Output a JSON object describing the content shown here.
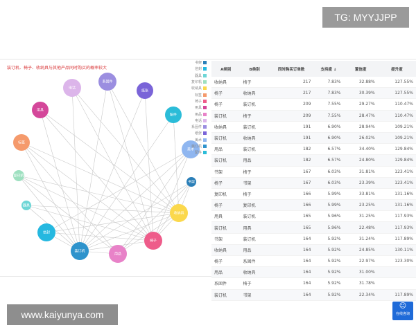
{
  "watermarks": {
    "top": "TG: MYYJJPP",
    "bottom": "www.kaiyunya.com"
  },
  "graph": {
    "title": "装订机、椅子、收纳具与其他产品同时购买的概率较大",
    "legend": [
      {
        "name": "书架",
        "color": "#2b7fb8"
      },
      {
        "name": "信封",
        "color": "#25b8e0"
      },
      {
        "name": "器具",
        "color": "#6ed6d6"
      },
      {
        "name": "复印机",
        "color": "#9ee0c0"
      },
      {
        "name": "收纳具",
        "color": "#fbd84c"
      },
      {
        "name": "标签",
        "color": "#f59a6c"
      },
      {
        "name": "椅子",
        "color": "#ee5c8a"
      },
      {
        "name": "用具",
        "color": "#d4479a"
      },
      {
        "name": "用品",
        "color": "#e882c8"
      },
      {
        "name": "电话",
        "color": "#dcb5ea"
      },
      {
        "name": "系固件",
        "color": "#9b8ee0"
      },
      {
        "name": "纸张",
        "color": "#7a64d8"
      },
      {
        "name": "美术",
        "color": "#8fb6f0"
      },
      {
        "name": "装订机",
        "color": "#2e93cc"
      },
      {
        "name": "配件",
        "color": "#2bbcd8"
      }
    ],
    "links": [
      [
        "装订机",
        "椅子"
      ],
      [
        "装订机",
        "收纳具"
      ],
      [
        "装订机",
        "用品"
      ],
      [
        "装订机",
        "书架"
      ],
      [
        "装订机",
        "用具"
      ],
      [
        "装订机",
        "系固件"
      ],
      [
        "装订机",
        "电话"
      ],
      [
        "装订机",
        "纸张"
      ],
      [
        "装订机",
        "配件"
      ],
      [
        "装订机",
        "美术"
      ],
      [
        "装订机",
        "标签"
      ],
      [
        "装订机",
        "复印机"
      ],
      [
        "装订机",
        "器具"
      ],
      [
        "装订机",
        "信封"
      ],
      [
        "椅子",
        "收纳具"
      ],
      [
        "椅子",
        "书架"
      ],
      [
        "椅子",
        "复印机"
      ],
      [
        "椅子",
        "系固件"
      ],
      [
        "椅子",
        "电话"
      ],
      [
        "椅子",
        "用具"
      ],
      [
        "椅子",
        "标签"
      ],
      [
        "椅子",
        "器具"
      ],
      [
        "椅子",
        "信封"
      ],
      [
        "椅子",
        "纸张"
      ],
      [
        "椅子",
        "美术"
      ],
      [
        "收纳具",
        "用品"
      ],
      [
        "收纳具",
        "电话"
      ],
      [
        "收纳具",
        "用具"
      ],
      [
        "收纳具",
        "标签"
      ],
      [
        "收纳具",
        "复印机"
      ],
      [
        "收纳具",
        "信封"
      ],
      [
        "收纳具",
        "书架"
      ],
      [
        "收纳具",
        "系固件"
      ],
      [
        "收纳具",
        "配件"
      ],
      [
        "收纳具",
        "器具"
      ],
      [
        "用品",
        "书架"
      ],
      [
        "用品",
        "标签"
      ],
      [
        "用品",
        "复印机"
      ],
      [
        "用品",
        "美术"
      ],
      [
        "信封",
        "美术"
      ]
    ]
  },
  "table": {
    "headers": [
      "A类别",
      "B类别",
      "同时购买订单数",
      "支持度 ↓",
      "置信度",
      "提升度"
    ],
    "rows": [
      [
        "收纳具",
        "椅子",
        "217",
        "7.83%",
        "32.88%",
        "127.55%"
      ],
      [
        "椅子",
        "收纳具",
        "217",
        "7.83%",
        "30.39%",
        "127.55%"
      ],
      [
        "椅子",
        "装订机",
        "209",
        "7.55%",
        "29.27%",
        "110.47%"
      ],
      [
        "装订机",
        "椅子",
        "209",
        "7.55%",
        "28.47%",
        "110.47%"
      ],
      [
        "收纳具",
        "装订机",
        "191",
        "6.90%",
        "28.94%",
        "109.21%"
      ],
      [
        "装订机",
        "收纳具",
        "191",
        "6.90%",
        "26.02%",
        "109.21%"
      ],
      [
        "用品",
        "装订机",
        "182",
        "6.57%",
        "34.40%",
        "129.84%"
      ],
      [
        "装订机",
        "用品",
        "182",
        "6.57%",
        "24.80%",
        "129.84%"
      ],
      [
        "书架",
        "椅子",
        "167",
        "6.03%",
        "31.81%",
        "123.41%"
      ],
      [
        "椅子",
        "书架",
        "167",
        "6.03%",
        "23.39%",
        "123.41%"
      ],
      [
        "复印机",
        "椅子",
        "166",
        "5.99%",
        "33.81%",
        "131.16%"
      ],
      [
        "椅子",
        "复印机",
        "166",
        "5.99%",
        "23.25%",
        "131.16%"
      ],
      [
        "用具",
        "装订机",
        "165",
        "5.96%",
        "31.25%",
        "117.93%"
      ],
      [
        "装订机",
        "用具",
        "165",
        "5.96%",
        "22.48%",
        "117.93%"
      ],
      [
        "书架",
        "装订机",
        "164",
        "5.92%",
        "31.24%",
        "117.89%"
      ],
      [
        "收纳具",
        "用品",
        "164",
        "5.92%",
        "24.85%",
        "130.11%"
      ],
      [
        "椅子",
        "系固件",
        "164",
        "5.92%",
        "22.97%",
        "123.30%"
      ],
      [
        "用品",
        "收纳具",
        "164",
        "5.92%",
        "31.00%",
        ""
      ],
      [
        "系固件",
        "椅子",
        "164",
        "5.92%",
        "31.78%",
        ""
      ],
      [
        "装订机",
        "书架",
        "164",
        "5.92%",
        "22.34%",
        "117.89%"
      ]
    ]
  },
  "chat_widget": {
    "label": "在线咨询",
    "icon": "chat-bubble-icon"
  }
}
